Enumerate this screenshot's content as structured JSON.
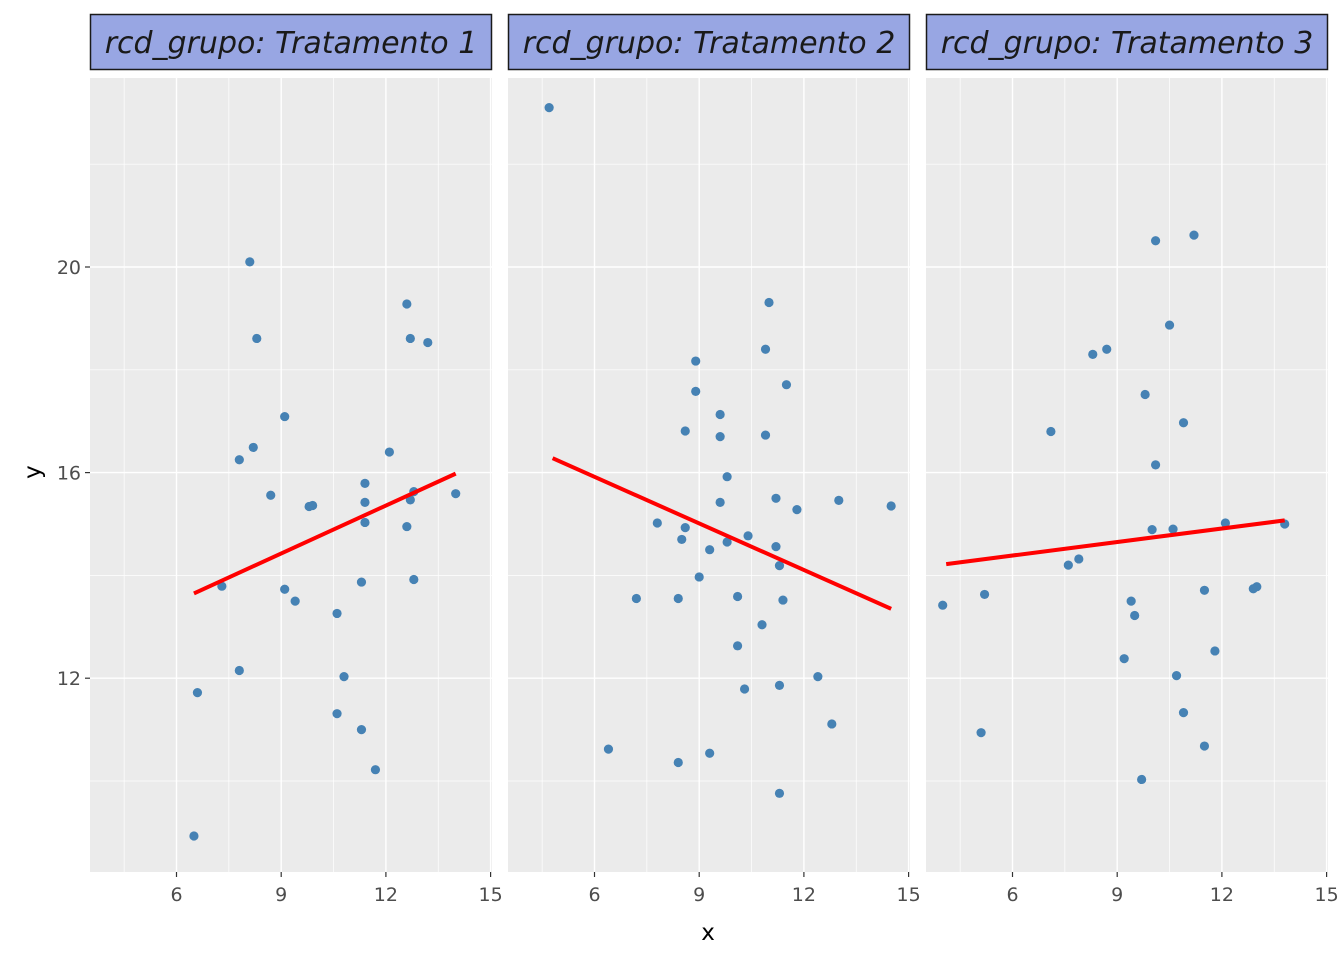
{
  "chart_data": {
    "type": "scatter",
    "xlabel": "x",
    "ylabel": "y",
    "xlim": [
      3.6,
      15.0
    ],
    "ylim": [
      8.2,
      23.4
    ],
    "x_ticks": [
      "6",
      "9",
      "12",
      "15"
    ],
    "y_ticks": [
      "12",
      "16",
      "20"
    ],
    "grid": true,
    "point_color": "#4682B4",
    "line_color": "#FF0000",
    "panel_background": "#EBEBEB",
    "strip_background": "#98A6E3",
    "panels": [
      {
        "strip_label": "rcd_grupo: Tratamento 1",
        "points": [
          [
            6.5,
            8.93
          ],
          [
            6.6,
            11.72
          ],
          [
            7.3,
            13.79
          ],
          [
            7.8,
            12.15
          ],
          [
            7.8,
            16.25
          ],
          [
            8.1,
            20.1
          ],
          [
            8.2,
            16.49
          ],
          [
            8.3,
            18.61
          ],
          [
            8.7,
            15.56
          ],
          [
            9.1,
            17.09
          ],
          [
            9.1,
            13.73
          ],
          [
            9.4,
            13.5
          ],
          [
            9.8,
            15.34
          ],
          [
            9.9,
            15.36
          ],
          [
            10.6,
            13.26
          ],
          [
            10.6,
            11.31
          ],
          [
            10.8,
            12.03
          ],
          [
            11.3,
            11.0
          ],
          [
            11.3,
            13.87
          ],
          [
            11.4,
            15.79
          ],
          [
            11.4,
            15.42
          ],
          [
            11.4,
            15.03
          ],
          [
            11.7,
            10.22
          ],
          [
            12.1,
            16.4
          ],
          [
            12.6,
            19.28
          ],
          [
            12.6,
            14.95
          ],
          [
            12.7,
            15.47
          ],
          [
            12.7,
            18.61
          ],
          [
            12.8,
            13.92
          ],
          [
            12.8,
            15.63
          ],
          [
            13.2,
            18.53
          ],
          [
            14.0,
            15.59
          ]
        ],
        "fit_line": [
          [
            6.5,
            13.65
          ],
          [
            14.0,
            15.98
          ]
        ]
      },
      {
        "strip_label": "rcd_grupo: Tratamento 2",
        "points": [
          [
            4.7,
            23.1
          ],
          [
            6.4,
            10.62
          ],
          [
            7.2,
            13.55
          ],
          [
            7.8,
            15.02
          ],
          [
            8.4,
            10.36
          ],
          [
            8.4,
            13.55
          ],
          [
            8.5,
            14.7
          ],
          [
            8.6,
            16.81
          ],
          [
            8.6,
            14.93
          ],
          [
            8.9,
            18.17
          ],
          [
            8.9,
            17.58
          ],
          [
            9.0,
            13.97
          ],
          [
            9.3,
            14.5
          ],
          [
            9.3,
            10.54
          ],
          [
            9.6,
            17.13
          ],
          [
            9.6,
            16.7
          ],
          [
            9.6,
            15.42
          ],
          [
            9.8,
            15.92
          ],
          [
            9.8,
            14.65
          ],
          [
            10.1,
            13.59
          ],
          [
            10.1,
            12.63
          ],
          [
            10.3,
            11.79
          ],
          [
            10.4,
            14.77
          ],
          [
            10.8,
            13.04
          ],
          [
            10.9,
            18.4
          ],
          [
            10.9,
            16.73
          ],
          [
            11.0,
            19.31
          ],
          [
            11.2,
            14.56
          ],
          [
            11.2,
            15.5
          ],
          [
            11.3,
            11.86
          ],
          [
            11.3,
            9.76
          ],
          [
            11.3,
            14.19
          ],
          [
            11.4,
            13.52
          ],
          [
            11.5,
            17.71
          ],
          [
            11.8,
            15.28
          ],
          [
            12.4,
            12.03
          ],
          [
            12.8,
            11.11
          ],
          [
            13.0,
            15.46
          ],
          [
            14.5,
            15.35
          ]
        ],
        "fit_line": [
          [
            4.8,
            16.28
          ],
          [
            14.5,
            13.35
          ]
        ]
      },
      {
        "strip_label": "rcd_grupo: Tratamento 3",
        "points": [
          [
            4.0,
            13.42
          ],
          [
            5.1,
            10.94
          ],
          [
            5.2,
            13.63
          ],
          [
            7.1,
            16.8
          ],
          [
            7.6,
            14.2
          ],
          [
            7.9,
            14.32
          ],
          [
            8.3,
            18.3
          ],
          [
            8.7,
            18.4
          ],
          [
            9.2,
            12.38
          ],
          [
            9.4,
            13.5
          ],
          [
            9.5,
            13.22
          ],
          [
            9.7,
            10.03
          ],
          [
            9.8,
            17.52
          ],
          [
            10.0,
            14.89
          ],
          [
            10.1,
            20.51
          ],
          [
            10.1,
            16.15
          ],
          [
            10.5,
            18.87
          ],
          [
            10.6,
            14.9
          ],
          [
            10.7,
            12.05
          ],
          [
            10.9,
            16.97
          ],
          [
            10.9,
            11.33
          ],
          [
            11.2,
            20.62
          ],
          [
            11.5,
            13.71
          ],
          [
            11.5,
            10.68
          ],
          [
            11.8,
            12.53
          ],
          [
            12.1,
            15.02
          ],
          [
            12.9,
            13.74
          ],
          [
            13.0,
            13.78
          ],
          [
            13.8,
            15.0
          ]
        ],
        "fit_line": [
          [
            4.1,
            14.22
          ],
          [
            13.8,
            15.07
          ]
        ]
      }
    ]
  }
}
